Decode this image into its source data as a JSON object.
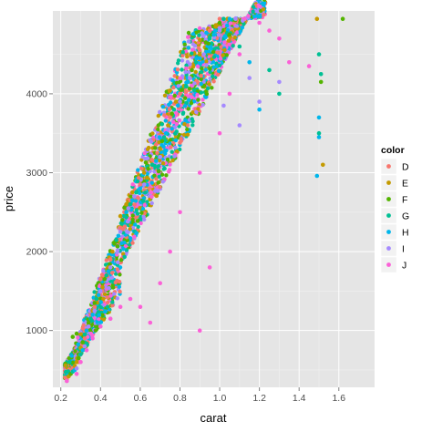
{
  "chart_data": {
    "type": "scatter",
    "title": "",
    "xlabel": "carat",
    "ylabel": "price",
    "xlim": [
      0.16,
      1.78
    ],
    "ylim": [
      280,
      5050
    ],
    "xticks": [
      0.2,
      0.4,
      0.6,
      0.8,
      1.0,
      1.2,
      1.4,
      1.6
    ],
    "xtick_labels": [
      "0.2",
      "0.4",
      "0.6",
      "0.8",
      "1.0",
      "1.2",
      "1.4",
      "1.6"
    ],
    "yticks": [
      1000,
      2000,
      3000,
      4000
    ],
    "ytick_labels": [
      "1000",
      "2000",
      "3000",
      "4000"
    ],
    "grid": true,
    "background": "#e5e5e5",
    "legend": {
      "title": "color",
      "placement": "right",
      "entries": [
        {
          "label": "D",
          "color": "#F8766D"
        },
        {
          "label": "E",
          "color": "#C49A00"
        },
        {
          "label": "F",
          "color": "#53B400"
        },
        {
          "label": "G",
          "color": "#00C094"
        },
        {
          "label": "H",
          "color": "#00B6EB"
        },
        {
          "label": "I",
          "color": "#A58AFF"
        },
        {
          "label": "J",
          "color": "#FB61D7"
        }
      ]
    },
    "series": [
      {
        "name": "D",
        "color": "#F8766D",
        "points": [
          [
            0.23,
            380
          ],
          [
            0.26,
            520
          ],
          [
            0.3,
            700
          ],
          [
            0.32,
            900
          ],
          [
            0.35,
            1200
          ],
          [
            0.4,
            1650
          ],
          [
            0.45,
            1900
          ],
          [
            0.5,
            2300
          ],
          [
            0.52,
            2500
          ],
          [
            0.55,
            2650
          ],
          [
            0.6,
            2850
          ],
          [
            0.7,
            3200
          ],
          [
            0.72,
            3450
          ],
          [
            0.75,
            3700
          ],
          [
            0.8,
            4000
          ],
          [
            0.85,
            4200
          ],
          [
            0.9,
            4550
          ],
          [
            0.95,
            4800
          ],
          [
            1.0,
            4950
          ],
          [
            0.29,
            600
          ],
          [
            0.31,
            800
          ],
          [
            0.34,
            1050
          ],
          [
            0.37,
            1300
          ],
          [
            0.41,
            1500
          ]
        ]
      },
      {
        "name": "E",
        "color": "#C49A00",
        "points": [
          [
            0.24,
            420
          ],
          [
            0.28,
            600
          ],
          [
            0.3,
            780
          ],
          [
            0.33,
            1000
          ],
          [
            0.36,
            1250
          ],
          [
            0.41,
            1550
          ],
          [
            0.46,
            2000
          ],
          [
            0.5,
            2450
          ],
          [
            0.53,
            2600
          ],
          [
            0.56,
            2750
          ],
          [
            0.62,
            3000
          ],
          [
            0.7,
            3300
          ],
          [
            0.74,
            3600
          ],
          [
            0.78,
            3900
          ],
          [
            0.82,
            4100
          ],
          [
            0.9,
            4500
          ],
          [
            0.98,
            4850
          ],
          [
            1.04,
            4950
          ],
          [
            1.52,
            3100
          ],
          [
            1.49,
            4950
          ],
          [
            0.27,
            550
          ],
          [
            0.32,
            950
          ],
          [
            0.38,
            1400
          ],
          [
            0.44,
            1750
          ]
        ]
      },
      {
        "name": "F",
        "color": "#53B400",
        "points": [
          [
            0.25,
            450
          ],
          [
            0.29,
            650
          ],
          [
            0.31,
            850
          ],
          [
            0.34,
            1100
          ],
          [
            0.37,
            1350
          ],
          [
            0.42,
            1650
          ],
          [
            0.47,
            2100
          ],
          [
            0.51,
            2400
          ],
          [
            0.54,
            2550
          ],
          [
            0.57,
            2700
          ],
          [
            0.64,
            3050
          ],
          [
            0.71,
            3400
          ],
          [
            0.76,
            3750
          ],
          [
            0.81,
            4050
          ],
          [
            0.86,
            4300
          ],
          [
            0.93,
            4650
          ],
          [
            1.0,
            4900
          ],
          [
            1.05,
            4750
          ],
          [
            1.62,
            4950
          ],
          [
            1.51,
            4150
          ],
          [
            0.26,
            920
          ],
          [
            0.28,
            960
          ]
        ]
      },
      {
        "name": "G",
        "color": "#00C094",
        "points": [
          [
            0.26,
            480
          ],
          [
            0.3,
            700
          ],
          [
            0.32,
            950
          ],
          [
            0.35,
            1150
          ],
          [
            0.38,
            1400
          ],
          [
            0.43,
            1700
          ],
          [
            0.48,
            2150
          ],
          [
            0.52,
            2450
          ],
          [
            0.55,
            2600
          ],
          [
            0.58,
            2750
          ],
          [
            0.66,
            3100
          ],
          [
            0.72,
            3450
          ],
          [
            0.77,
            3800
          ],
          [
            0.83,
            4100
          ],
          [
            0.88,
            4400
          ],
          [
            0.95,
            4700
          ],
          [
            1.02,
            4950
          ],
          [
            1.1,
            4600
          ],
          [
            1.51,
            4250
          ],
          [
            1.5,
            3500
          ],
          [
            1.5,
            4500
          ],
          [
            1.25,
            4300
          ],
          [
            1.3,
            4000
          ]
        ]
      },
      {
        "name": "H",
        "color": "#00B6EB",
        "points": [
          [
            0.27,
            500
          ],
          [
            0.31,
            750
          ],
          [
            0.33,
            1000
          ],
          [
            0.36,
            1200
          ],
          [
            0.39,
            1450
          ],
          [
            0.44,
            1750
          ],
          [
            0.49,
            2200
          ],
          [
            0.53,
            2500
          ],
          [
            0.56,
            2650
          ],
          [
            0.6,
            2800
          ],
          [
            0.68,
            3150
          ],
          [
            0.73,
            3500
          ],
          [
            0.79,
            3850
          ],
          [
            0.84,
            4150
          ],
          [
            0.9,
            4450
          ],
          [
            0.97,
            4750
          ],
          [
            1.05,
            4950
          ],
          [
            1.15,
            4400
          ],
          [
            1.49,
            2960
          ],
          [
            1.5,
            3450
          ],
          [
            1.5,
            3700
          ],
          [
            1.2,
            3800
          ]
        ]
      },
      {
        "name": "I",
        "color": "#A58AFF",
        "points": [
          [
            0.28,
            520
          ],
          [
            0.32,
            800
          ],
          [
            0.34,
            1050
          ],
          [
            0.37,
            1250
          ],
          [
            0.4,
            1500
          ],
          [
            0.45,
            1800
          ],
          [
            0.5,
            2250
          ],
          [
            0.54,
            2550
          ],
          [
            0.57,
            2700
          ],
          [
            0.62,
            2850
          ],
          [
            0.7,
            3200
          ],
          [
            0.74,
            3550
          ],
          [
            0.8,
            3900
          ],
          [
            0.85,
            4200
          ],
          [
            0.92,
            4500
          ],
          [
            1.0,
            4800
          ],
          [
            1.08,
            4950
          ],
          [
            1.15,
            4200
          ],
          [
            1.2,
            3900
          ],
          [
            1.3,
            4150
          ],
          [
            1.02,
            3850
          ],
          [
            1.1,
            3600
          ]
        ]
      },
      {
        "name": "J",
        "color": "#FB61D7",
        "points": [
          [
            0.23,
            360
          ],
          [
            0.28,
            450
          ],
          [
            0.3,
            600
          ],
          [
            0.33,
            750
          ],
          [
            0.36,
            900
          ],
          [
            0.4,
            1050
          ],
          [
            0.45,
            1150
          ],
          [
            0.5,
            1300
          ],
          [
            0.55,
            1400
          ],
          [
            0.6,
            1300
          ],
          [
            0.7,
            1600
          ],
          [
            0.75,
            2000
          ],
          [
            0.8,
            2500
          ],
          [
            0.9,
            3000
          ],
          [
            1.0,
            3500
          ],
          [
            1.05,
            4000
          ],
          [
            1.1,
            4500
          ],
          [
            1.2,
            4900
          ],
          [
            1.25,
            4800
          ],
          [
            1.3,
            4700
          ],
          [
            1.35,
            4400
          ],
          [
            1.45,
            4350
          ],
          [
            0.65,
            1100
          ],
          [
            0.9,
            1000
          ],
          [
            0.95,
            1800
          ]
        ]
      }
    ]
  }
}
